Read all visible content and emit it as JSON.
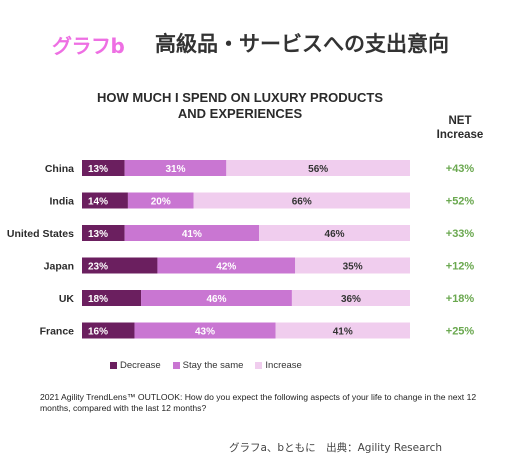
{
  "header": {
    "label": "グラフb",
    "title": "高級品・サービスへの支出意向"
  },
  "chart_data": {
    "type": "bar",
    "stacked": true,
    "orientation": "horizontal",
    "title": "HOW MUCH I SPEND ON LUXURY PRODUCTS\nAND EXPERIENCES",
    "categories": [
      "China",
      "India",
      "United States",
      "Japan",
      "UK",
      "France"
    ],
    "series": [
      {
        "name": "Decrease",
        "color": "#6b1f5f",
        "values": [
          13,
          14,
          13,
          23,
          18,
          16
        ]
      },
      {
        "name": "Stay the same",
        "color": "#c976d2",
        "values": [
          31,
          20,
          41,
          42,
          46,
          43
        ]
      },
      {
        "name": "Increase",
        "color": "#f0cdee",
        "values": [
          56,
          66,
          46,
          35,
          36,
          41
        ]
      }
    ],
    "labels": [
      [
        "13%",
        "31%",
        "56%"
      ],
      [
        "14%",
        "20%",
        "66%"
      ],
      [
        "13%",
        "41%",
        "46%"
      ],
      [
        "23%",
        "42%",
        "35%"
      ],
      [
        "18%",
        "46%",
        "36%"
      ],
      [
        "16%",
        "43%",
        "41%"
      ]
    ],
    "net_header": "NET\nIncrease",
    "net_increase": [
      "+43%",
      "+52%",
      "+33%",
      "+12%",
      "+18%",
      "+25%"
    ],
    "net_color": "#6aa84f",
    "xlim": [
      0,
      100
    ],
    "legend_position": "bottom",
    "grid": false
  },
  "footnote": "2021 Agility TrendLens™ OUTLOOK: How do you expect the following aspects of your life to change in the next 12 months, compared with the last 12 months?",
  "source": "グラフa、bともに　出典：Agility Research"
}
